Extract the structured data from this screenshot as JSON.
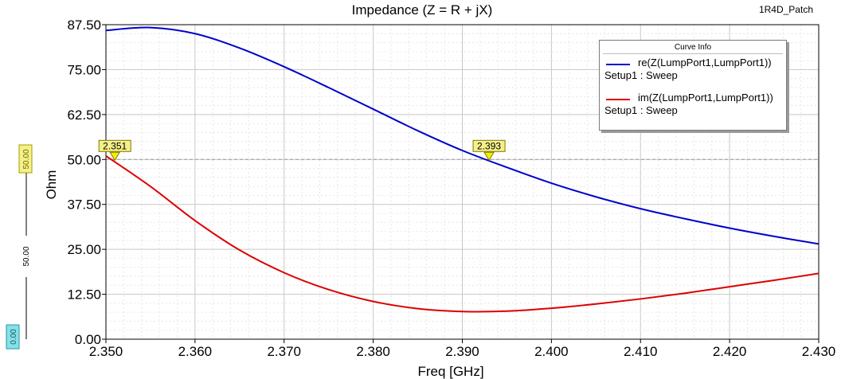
{
  "corner_label": "1R4D_Patch",
  "legend": {
    "title": "Curve Info",
    "entries": [
      {
        "name": "re(Z(LumpPort1,LumpPort1))",
        "sub": "Setup1 : Sweep",
        "color": "#0000cc"
      },
      {
        "name": "im(Z(LumpPort1,LumpPort1))",
        "sub": "Setup1 : Sweep",
        "color": "#dd0000"
      }
    ]
  },
  "side_axis": {
    "top_value": "50.00",
    "mid_value": "50.00",
    "bottom_value": "0.00"
  },
  "chart_data": {
    "type": "line",
    "title": "Impedance (Z = R + jX)",
    "xlabel": "Freq [GHz]",
    "ylabel": "Ohm",
    "xlim": [
      2.35,
      2.43
    ],
    "ylim": [
      0,
      87.5
    ],
    "x_ticks": [
      "2.350",
      "2.360",
      "2.370",
      "2.380",
      "2.390",
      "2.400",
      "2.410",
      "2.420",
      "2.430"
    ],
    "y_ticks": [
      "0.00",
      "12.50",
      "25.00",
      "37.50",
      "50.00",
      "62.50",
      "75.00",
      "87.50"
    ],
    "grid": true,
    "reference_line": 50.0,
    "markers": [
      {
        "label": "2.351",
        "x": 2.351,
        "y": 50.0
      },
      {
        "label": "2.393",
        "x": 2.393,
        "y": 50.0
      }
    ],
    "series": [
      {
        "name": "re(Z(LumpPort1,LumpPort1))",
        "color": "#0000cc",
        "x": [
          2.35,
          2.355,
          2.36,
          2.365,
          2.37,
          2.375,
          2.38,
          2.385,
          2.39,
          2.395,
          2.4,
          2.405,
          2.41,
          2.415,
          2.42,
          2.425,
          2.43
        ],
        "y": [
          85.9,
          86.7,
          85.0,
          81.0,
          75.8,
          70.0,
          64.0,
          58.0,
          52.5,
          47.8,
          43.4,
          39.6,
          36.3,
          33.5,
          30.9,
          28.6,
          26.5
        ]
      },
      {
        "name": "im(Z(LumpPort1,LumpPort1))",
        "color": "#dd0000",
        "x": [
          2.35,
          2.355,
          2.36,
          2.365,
          2.37,
          2.375,
          2.38,
          2.385,
          2.39,
          2.395,
          2.4,
          2.405,
          2.41,
          2.415,
          2.42,
          2.425,
          2.43
        ],
        "y": [
          51.0,
          42.5,
          33.0,
          24.8,
          18.5,
          13.8,
          10.5,
          8.5,
          7.7,
          7.8,
          8.6,
          9.8,
          11.2,
          12.8,
          14.6,
          16.4,
          18.3
        ]
      }
    ]
  }
}
